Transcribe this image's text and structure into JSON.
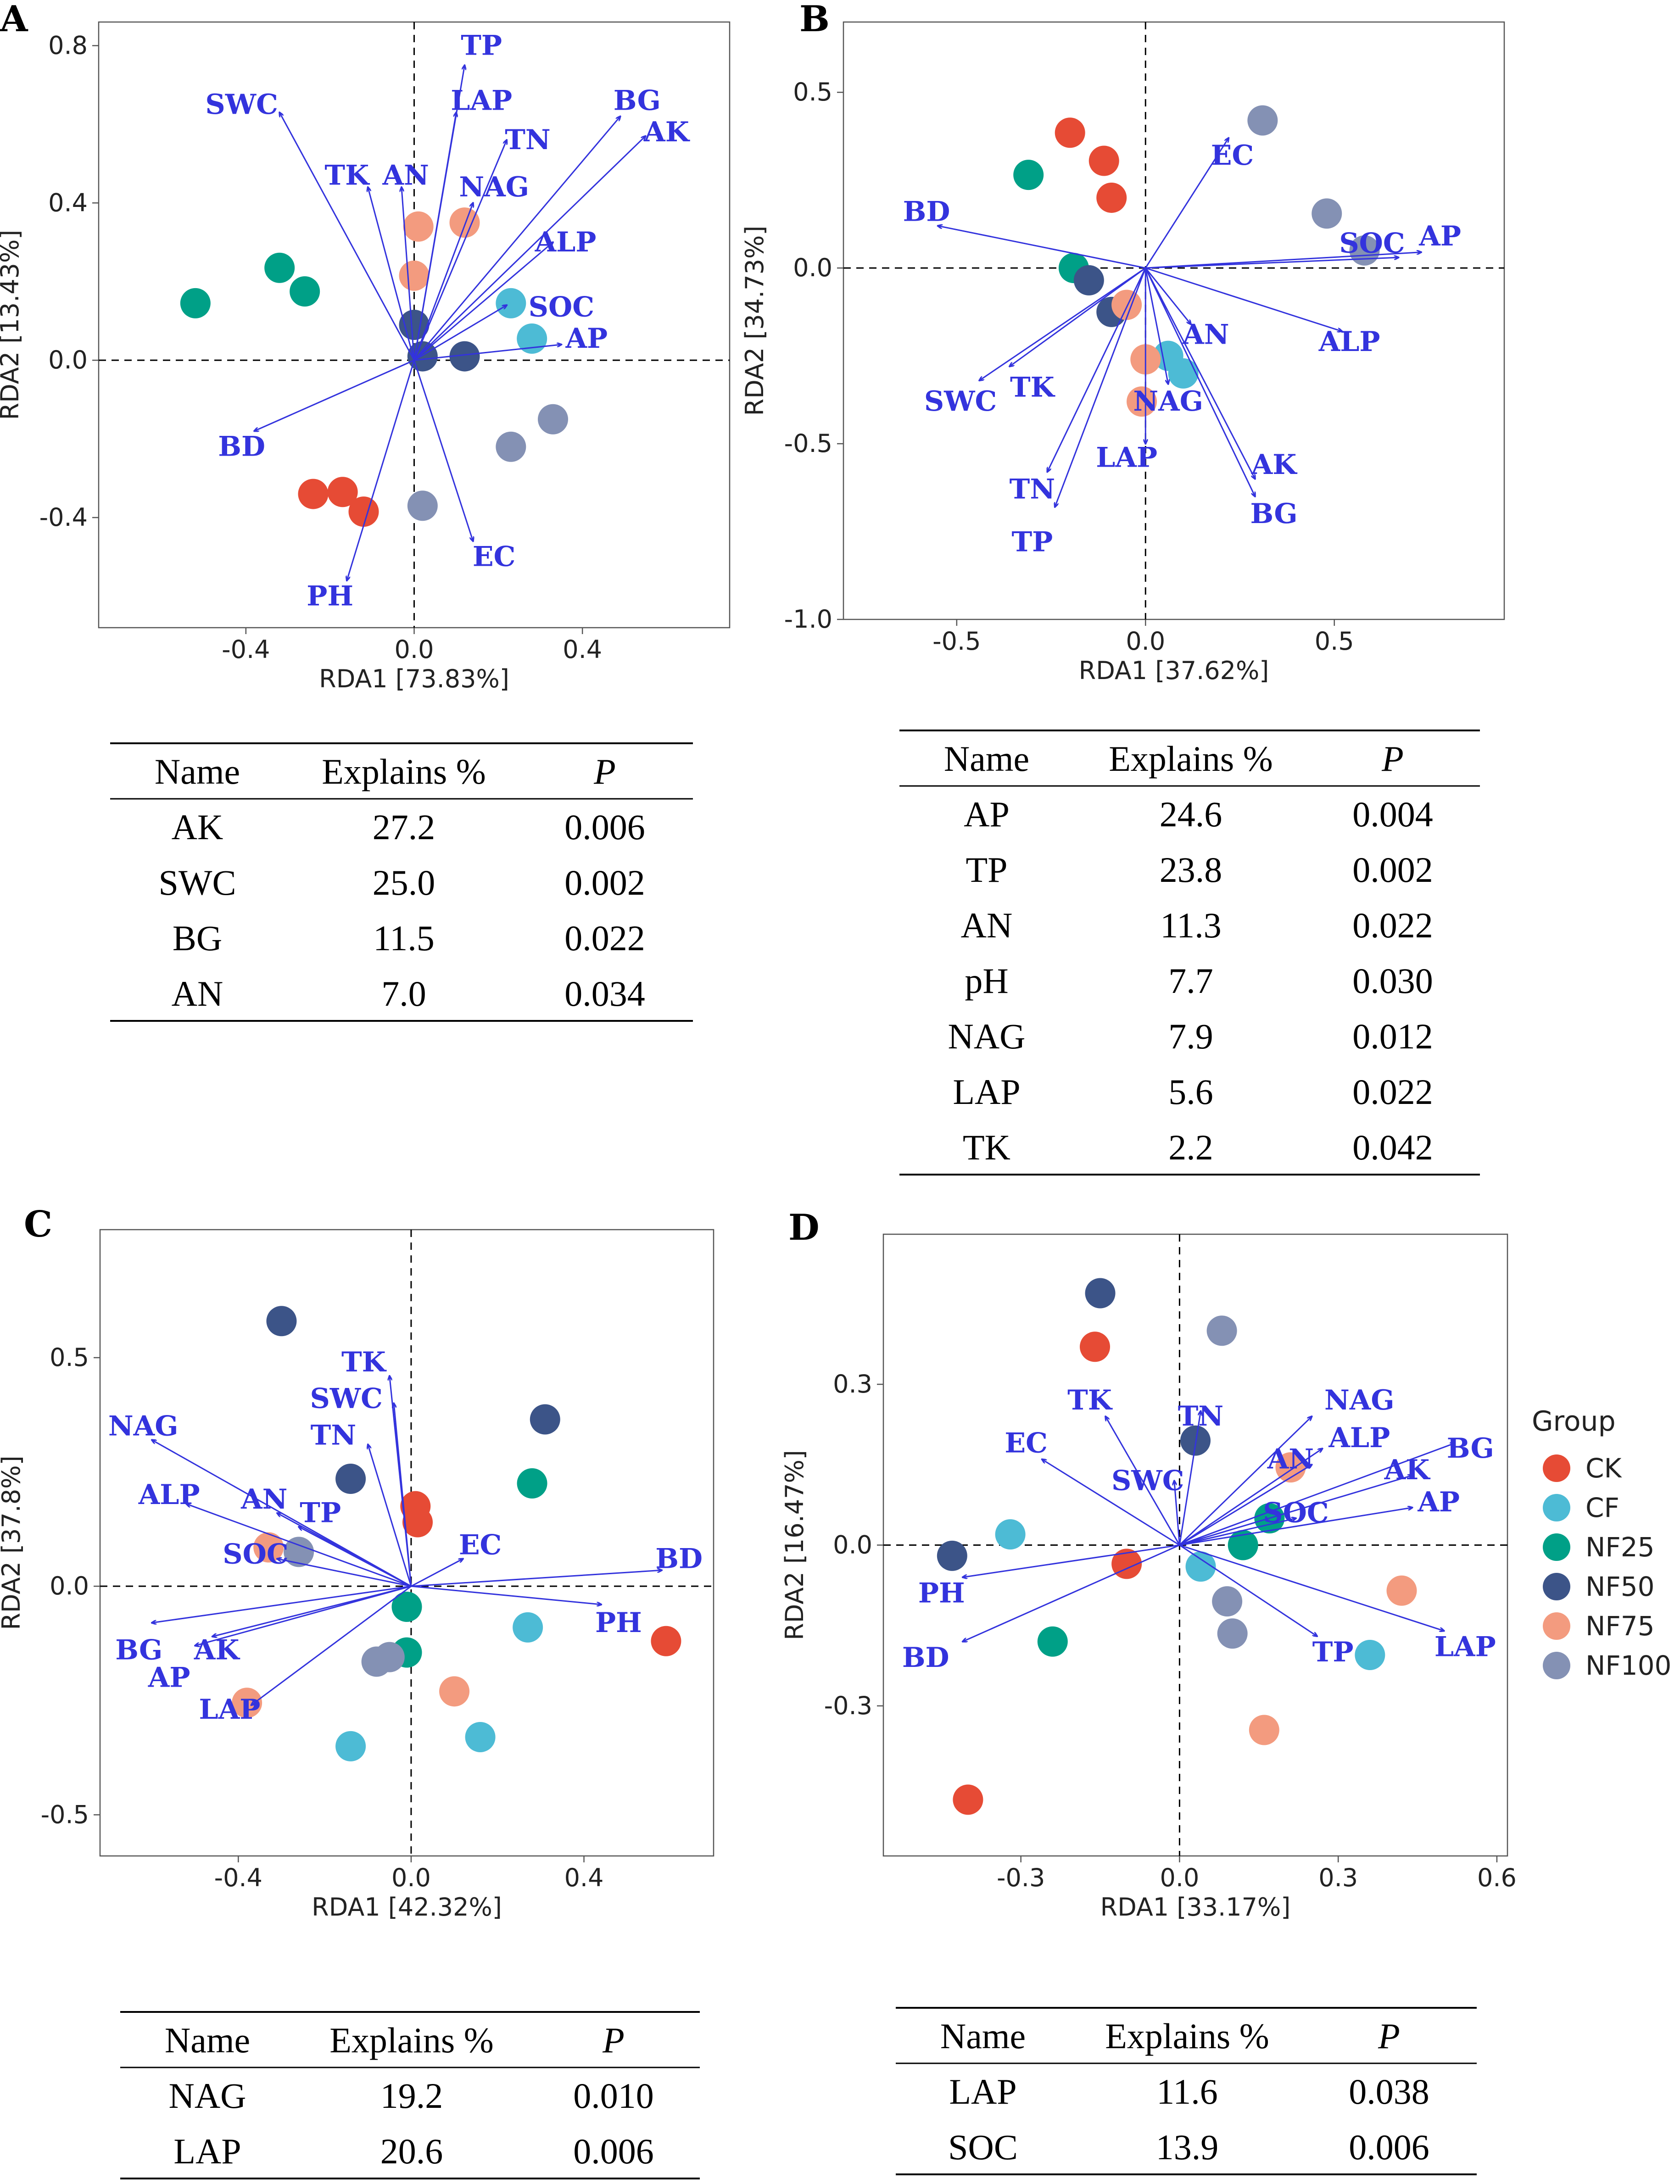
{
  "chart_data": [
    {
      "panel": "A",
      "type": "scatter",
      "xlabel": "RDA1 [73.83%]",
      "ylabel": "RDA2 [13.43%]",
      "xlim": [
        -0.75,
        0.75
      ],
      "ylim": [
        -0.68,
        0.86
      ],
      "xticks": [
        {
          "v": -0.4,
          "label": "-0.4"
        },
        {
          "v": 0.0,
          "label": "0.0"
        },
        {
          "v": 0.4,
          "label": "0.4"
        }
      ],
      "yticks": [
        {
          "v": -0.4,
          "label": "-0.4"
        },
        {
          "v": 0.0,
          "label": "0.0"
        },
        {
          "v": 0.4,
          "label": "0.4"
        },
        {
          "v": 0.8,
          "label": "0.8"
        }
      ],
      "points": [
        {
          "g": "CK",
          "x": -0.24,
          "y": -0.34
        },
        {
          "g": "CK",
          "x": -0.17,
          "y": -0.335
        },
        {
          "g": "CK",
          "x": -0.12,
          "y": -0.385
        },
        {
          "g": "CF",
          "x": 0.23,
          "y": 0.145
        },
        {
          "g": "CF",
          "x": 0.28,
          "y": 0.055
        },
        {
          "g": "NF25",
          "x": -0.52,
          "y": 0.145
        },
        {
          "g": "NF25",
          "x": -0.32,
          "y": 0.235
        },
        {
          "g": "NF25",
          "x": -0.26,
          "y": 0.175
        },
        {
          "g": "NF50",
          "x": 0.0,
          "y": 0.09
        },
        {
          "g": "NF50",
          "x": 0.02,
          "y": 0.01
        },
        {
          "g": "NF50",
          "x": 0.12,
          "y": 0.01
        },
        {
          "g": "NF75",
          "x": 0.01,
          "y": 0.34
        },
        {
          "g": "NF75",
          "x": 0.12,
          "y": 0.35
        },
        {
          "g": "NF75",
          "x": 0.0,
          "y": 0.215
        },
        {
          "g": "NF100",
          "x": 0.33,
          "y": -0.15
        },
        {
          "g": "NF100",
          "x": 0.23,
          "y": -0.22
        },
        {
          "g": "NF100",
          "x": 0.02,
          "y": -0.37
        }
      ],
      "vectors": [
        {
          "label": "TP",
          "x": 0.12,
          "y": 0.75,
          "lx": 0.16,
          "ly": 0.8
        },
        {
          "label": "LAP",
          "x": 0.1,
          "y": 0.63,
          "lx": 0.16,
          "ly": 0.66
        },
        {
          "label": "SWC",
          "x": -0.32,
          "y": 0.63,
          "lx": -0.41,
          "ly": 0.65
        },
        {
          "label": "BG",
          "x": 0.49,
          "y": 0.62,
          "lx": 0.53,
          "ly": 0.66
        },
        {
          "label": "AK",
          "x": 0.55,
          "y": 0.57,
          "lx": 0.6,
          "ly": 0.58
        },
        {
          "label": "TN",
          "x": 0.22,
          "y": 0.56,
          "lx": 0.27,
          "ly": 0.56
        },
        {
          "label": "TK",
          "x": -0.11,
          "y": 0.44,
          "lx": -0.16,
          "ly": 0.47
        },
        {
          "label": "AN",
          "x": -0.03,
          "y": 0.44,
          "lx": -0.02,
          "ly": 0.47
        },
        {
          "label": "NAG",
          "x": 0.14,
          "y": 0.4,
          "lx": 0.19,
          "ly": 0.44
        },
        {
          "label": "ALP",
          "x": 0.33,
          "y": 0.3,
          "lx": 0.36,
          "ly": 0.3
        },
        {
          "label": "SOC",
          "x": 0.22,
          "y": 0.14,
          "lx": 0.35,
          "ly": 0.135
        },
        {
          "label": "AP",
          "x": 0.35,
          "y": 0.04,
          "lx": 0.41,
          "ly": 0.055
        },
        {
          "label": "BD",
          "x": -0.38,
          "y": -0.18,
          "lx": -0.41,
          "ly": -0.22
        },
        {
          "label": "EC",
          "x": 0.14,
          "y": -0.46,
          "lx": 0.19,
          "ly": -0.5
        },
        {
          "label": "PH",
          "x": -0.16,
          "y": -0.56,
          "lx": -0.2,
          "ly": -0.6
        }
      ]
    },
    {
      "panel": "B",
      "type": "scatter",
      "xlabel": "RDA1 [37.62%]",
      "ylabel": "RDA2 [34.73%]",
      "xlim": [
        -0.8,
        0.95
      ],
      "ylim": [
        -1.0,
        0.7
      ],
      "xticks": [
        {
          "v": -0.5,
          "label": "-0.5"
        },
        {
          "v": 0.0,
          "label": "0.0"
        },
        {
          "v": 0.5,
          "label": "0.5"
        }
      ],
      "yticks": [
        {
          "v": -1.0,
          "label": "-1.0"
        },
        {
          "v": -0.5,
          "label": "-0.5"
        },
        {
          "v": 0.0,
          "label": "0.0"
        },
        {
          "v": 0.5,
          "label": "0.5"
        }
      ],
      "points": [
        {
          "g": "CK",
          "x": -0.2,
          "y": 0.385
        },
        {
          "g": "CK",
          "x": -0.11,
          "y": 0.305
        },
        {
          "g": "CK",
          "x": -0.09,
          "y": 0.2
        },
        {
          "g": "CF",
          "x": 0.06,
          "y": -0.25
        },
        {
          "g": "CF",
          "x": 0.1,
          "y": -0.3
        },
        {
          "g": "NF25",
          "x": -0.31,
          "y": 0.265
        },
        {
          "g": "NF25",
          "x": -0.19,
          "y": 0.0
        },
        {
          "g": "NF50",
          "x": -0.15,
          "y": -0.035
        },
        {
          "g": "NF50",
          "x": -0.09,
          "y": -0.125
        },
        {
          "g": "NF75",
          "x": -0.05,
          "y": -0.105
        },
        {
          "g": "NF75",
          "x": 0.0,
          "y": -0.26
        },
        {
          "g": "NF75",
          "x": -0.01,
          "y": -0.38
        },
        {
          "g": "NF100",
          "x": 0.31,
          "y": 0.42
        },
        {
          "g": "NF100",
          "x": 0.48,
          "y": 0.155
        },
        {
          "g": "NF100",
          "x": 0.58,
          "y": 0.05
        }
      ],
      "vectors": [
        {
          "label": "AP",
          "x": 0.73,
          "y": 0.045,
          "lx": 0.78,
          "ly": 0.09
        },
        {
          "label": "SOC",
          "x": 0.67,
          "y": 0.03,
          "lx": 0.6,
          "ly": 0.07
        },
        {
          "label": "EC",
          "x": 0.22,
          "y": 0.37,
          "lx": 0.23,
          "ly": 0.32
        },
        {
          "label": "BD",
          "x": -0.55,
          "y": 0.12,
          "lx": -0.58,
          "ly": 0.16
        },
        {
          "label": "ALP",
          "x": 0.52,
          "y": -0.18,
          "lx": 0.54,
          "ly": -0.21
        },
        {
          "label": "AN",
          "x": 0.12,
          "y": -0.16,
          "lx": 0.16,
          "ly": -0.19
        },
        {
          "label": "NAG",
          "x": 0.06,
          "y": -0.33,
          "lx": 0.06,
          "ly": -0.38
        },
        {
          "label": "LAP",
          "x": 0.0,
          "y": -0.5,
          "lx": -0.05,
          "ly": -0.54
        },
        {
          "label": "AK",
          "x": 0.29,
          "y": -0.6,
          "lx": 0.34,
          "ly": -0.56
        },
        {
          "label": "BG",
          "x": 0.29,
          "y": -0.65,
          "lx": 0.34,
          "ly": -0.7
        },
        {
          "label": "SWC",
          "x": -0.44,
          "y": -0.32,
          "lx": -0.49,
          "ly": -0.38
        },
        {
          "label": "TK",
          "x": -0.36,
          "y": -0.28,
          "lx": -0.3,
          "ly": -0.34
        },
        {
          "label": "TN",
          "x": -0.26,
          "y": -0.58,
          "lx": -0.3,
          "ly": -0.63
        },
        {
          "label": "TP",
          "x": -0.24,
          "y": -0.68,
          "lx": -0.3,
          "ly": -0.78
        }
      ]
    },
    {
      "panel": "C",
      "type": "scatter",
      "xlabel": "RDA1 [42.32%]",
      "ylabel": "RDA2 [37.8%]",
      "xlim": [
        -0.72,
        0.7
      ],
      "ylim": [
        -0.59,
        0.78
      ],
      "xticks": [
        {
          "v": -0.4,
          "label": "-0.4"
        },
        {
          "v": 0.0,
          "label": "0.0"
        },
        {
          "v": 0.4,
          "label": "0.4"
        }
      ],
      "yticks": [
        {
          "v": -0.5,
          "label": "-0.5"
        },
        {
          "v": 0.0,
          "label": "0.0"
        },
        {
          "v": 0.5,
          "label": "0.5"
        }
      ],
      "points": [
        {
          "g": "CK",
          "x": 0.01,
          "y": 0.175
        },
        {
          "g": "CK",
          "x": 0.015,
          "y": 0.14
        },
        {
          "g": "CK",
          "x": 0.59,
          "y": -0.12
        },
        {
          "g": "CF",
          "x": 0.27,
          "y": -0.09
        },
        {
          "g": "CF",
          "x": 0.16,
          "y": -0.33
        },
        {
          "g": "CF",
          "x": -0.14,
          "y": -0.35
        },
        {
          "g": "NF25",
          "x": 0.28,
          "y": 0.225
        },
        {
          "g": "NF25",
          "x": -0.01,
          "y": -0.045
        },
        {
          "g": "NF25",
          "x": -0.01,
          "y": -0.145
        },
        {
          "g": "NF50",
          "x": -0.3,
          "y": 0.58
        },
        {
          "g": "NF50",
          "x": 0.31,
          "y": 0.365
        },
        {
          "g": "NF50",
          "x": -0.14,
          "y": 0.235
        },
        {
          "g": "NF75",
          "x": -0.33,
          "y": 0.085
        },
        {
          "g": "NF75",
          "x": 0.1,
          "y": -0.23
        },
        {
          "g": "NF75",
          "x": -0.38,
          "y": -0.255
        },
        {
          "g": "NF100",
          "x": -0.26,
          "y": 0.075
        },
        {
          "g": "NF100",
          "x": -0.05,
          "y": -0.155
        },
        {
          "g": "NF100",
          "x": -0.08,
          "y": -0.165
        }
      ],
      "vectors": [
        {
          "label": "TK",
          "x": -0.05,
          "y": 0.46,
          "lx": -0.11,
          "ly": 0.49
        },
        {
          "label": "SWC",
          "x": -0.04,
          "y": 0.4,
          "lx": -0.15,
          "ly": 0.41
        },
        {
          "label": "TN",
          "x": -0.1,
          "y": 0.31,
          "lx": -0.18,
          "ly": 0.33
        },
        {
          "label": "NAG",
          "x": -0.6,
          "y": 0.32,
          "lx": -0.62,
          "ly": 0.35
        },
        {
          "label": "ALP",
          "x": -0.52,
          "y": 0.18,
          "lx": -0.56,
          "ly": 0.2
        },
        {
          "label": "AN",
          "x": -0.31,
          "y": 0.16,
          "lx": -0.34,
          "ly": 0.19
        },
        {
          "label": "TP",
          "x": -0.26,
          "y": 0.13,
          "lx": -0.21,
          "ly": 0.16
        },
        {
          "label": "SOC",
          "x": -0.31,
          "y": 0.06,
          "lx": -0.36,
          "ly": 0.07
        },
        {
          "label": "EC",
          "x": 0.12,
          "y": 0.06,
          "lx": 0.16,
          "ly": 0.09
        },
        {
          "label": "BD",
          "x": 0.58,
          "y": 0.035,
          "lx": 0.62,
          "ly": 0.06
        },
        {
          "label": "PH",
          "x": 0.44,
          "y": -0.04,
          "lx": 0.48,
          "ly": -0.08
        },
        {
          "label": "BG",
          "x": -0.6,
          "y": -0.08,
          "lx": -0.63,
          "ly": -0.14
        },
        {
          "label": "AK",
          "x": -0.46,
          "y": -0.11,
          "lx": -0.45,
          "ly": -0.14
        },
        {
          "label": "AP",
          "x": -0.5,
          "y": -0.13,
          "lx": -0.56,
          "ly": -0.2
        },
        {
          "label": "LAP",
          "x": -0.37,
          "y": -0.26,
          "lx": -0.42,
          "ly": -0.27
        }
      ]
    },
    {
      "panel": "D",
      "type": "scatter",
      "xlabel": "RDA1 [33.17%]",
      "ylabel": "RDA2 [16.47%]",
      "xlim": [
        -0.56,
        0.62
      ],
      "ylim": [
        -0.58,
        0.58
      ],
      "xticks": [
        {
          "v": -0.3,
          "label": "-0.3"
        },
        {
          "v": 0.0,
          "label": "0.0"
        },
        {
          "v": 0.3,
          "label": "0.3"
        },
        {
          "v": 0.6,
          "label": "0.6"
        }
      ],
      "yticks": [
        {
          "v": -0.3,
          "label": "-0.3"
        },
        {
          "v": 0.0,
          "label": "0.0"
        },
        {
          "v": 0.3,
          "label": "0.3"
        }
      ],
      "points": [
        {
          "g": "CK",
          "x": -0.16,
          "y": 0.37
        },
        {
          "g": "CK",
          "x": -0.1,
          "y": -0.035
        },
        {
          "g": "CK",
          "x": -0.4,
          "y": -0.475
        },
        {
          "g": "CF",
          "x": -0.32,
          "y": 0.02
        },
        {
          "g": "CF",
          "x": 0.04,
          "y": -0.04
        },
        {
          "g": "CF",
          "x": 0.36,
          "y": -0.205
        },
        {
          "g": "NF25",
          "x": 0.17,
          "y": 0.05
        },
        {
          "g": "NF25",
          "x": 0.12,
          "y": 0.0
        },
        {
          "g": "NF25",
          "x": -0.24,
          "y": -0.18
        },
        {
          "g": "NF50",
          "x": -0.15,
          "y": 0.47
        },
        {
          "g": "NF50",
          "x": 0.03,
          "y": 0.195
        },
        {
          "g": "NF50",
          "x": -0.43,
          "y": -0.02
        },
        {
          "g": "NF75",
          "x": 0.21,
          "y": 0.145
        },
        {
          "g": "NF75",
          "x": 0.42,
          "y": -0.085
        },
        {
          "g": "NF75",
          "x": 0.16,
          "y": -0.345
        },
        {
          "g": "NF100",
          "x": 0.08,
          "y": 0.4
        },
        {
          "g": "NF100",
          "x": 0.09,
          "y": -0.105
        },
        {
          "g": "NF100",
          "x": 0.1,
          "y": -0.165
        }
      ],
      "vectors": [
        {
          "label": "NAG",
          "x": 0.25,
          "y": 0.24,
          "lx": 0.34,
          "ly": 0.27
        },
        {
          "label": "ALP",
          "x": 0.27,
          "y": 0.18,
          "lx": 0.34,
          "ly": 0.2
        },
        {
          "label": "BG",
          "x": 0.52,
          "y": 0.19,
          "lx": 0.55,
          "ly": 0.18
        },
        {
          "label": "AK",
          "x": 0.44,
          "y": 0.13,
          "lx": 0.43,
          "ly": 0.14
        },
        {
          "label": "AP",
          "x": 0.44,
          "y": 0.07,
          "lx": 0.49,
          "ly": 0.08
        },
        {
          "label": "AN",
          "x": 0.25,
          "y": 0.15,
          "lx": 0.21,
          "ly": 0.16
        },
        {
          "label": "SOC",
          "x": 0.22,
          "y": 0.05,
          "lx": 0.22,
          "ly": 0.06
        },
        {
          "label": "TN",
          "x": 0.04,
          "y": 0.25,
          "lx": 0.04,
          "ly": 0.24
        },
        {
          "label": "TK",
          "x": -0.14,
          "y": 0.24,
          "lx": -0.17,
          "ly": 0.27
        },
        {
          "label": "SWC",
          "x": -0.01,
          "y": 0.12,
          "lx": -0.06,
          "ly": 0.12
        },
        {
          "label": "EC",
          "x": -0.26,
          "y": 0.16,
          "lx": -0.29,
          "ly": 0.19
        },
        {
          "label": "PH",
          "x": -0.41,
          "y": -0.06,
          "lx": -0.45,
          "ly": -0.09
        },
        {
          "label": "BD",
          "x": -0.41,
          "y": -0.18,
          "lx": -0.48,
          "ly": -0.21
        },
        {
          "label": "TP",
          "x": 0.26,
          "y": -0.17,
          "lx": 0.29,
          "ly": -0.2
        },
        {
          "label": "LAP",
          "x": 0.5,
          "y": -0.16,
          "lx": 0.54,
          "ly": -0.19
        }
      ]
    }
  ],
  "legend": {
    "title": "Group",
    "items": [
      {
        "label": "CK",
        "color": "#e64b35"
      },
      {
        "label": "CF",
        "color": "#4dbbd5"
      },
      {
        "label": "NF25",
        "color": "#00a087"
      },
      {
        "label": "NF50",
        "color": "#3c5488"
      },
      {
        "label": "NF75",
        "color": "#f39b7f"
      },
      {
        "label": "NF100",
        "color": "#8491b4"
      }
    ]
  },
  "tables": [
    {
      "panel": "A",
      "headers": {
        "name": "Name",
        "explains": "Explains %",
        "p": "P"
      },
      "rows": [
        {
          "name": "AK",
          "explains": "27.2",
          "p": "0.006"
        },
        {
          "name": "SWC",
          "explains": "25.0",
          "p": "0.002"
        },
        {
          "name": "BG",
          "explains": "11.5",
          "p": "0.022"
        },
        {
          "name": "AN",
          "explains": "7.0",
          "p": "0.034"
        }
      ]
    },
    {
      "panel": "B",
      "headers": {
        "name": "Name",
        "explains": "Explains %",
        "p": "P"
      },
      "rows": [
        {
          "name": "AP",
          "explains": "24.6",
          "p": "0.004"
        },
        {
          "name": "TP",
          "explains": "23.8",
          "p": "0.002"
        },
        {
          "name": "AN",
          "explains": "11.3",
          "p": "0.022"
        },
        {
          "name": "pH",
          "explains": "7.7",
          "p": "0.030"
        },
        {
          "name": "NAG",
          "explains": "7.9",
          "p": "0.012"
        },
        {
          "name": "LAP",
          "explains": "5.6",
          "p": "0.022"
        },
        {
          "name": "TK",
          "explains": "2.2",
          "p": "0.042"
        }
      ]
    },
    {
      "panel": "C",
      "headers": {
        "name": "Name",
        "explains": "Explains %",
        "p": "P"
      },
      "rows": [
        {
          "name": "NAG",
          "explains": "19.2",
          "p": "0.010"
        },
        {
          "name": "LAP",
          "explains": "20.6",
          "p": "0.006"
        }
      ]
    },
    {
      "panel": "D",
      "headers": {
        "name": "Name",
        "explains": "Explains %",
        "p": "P"
      },
      "rows": [
        {
          "name": "LAP",
          "explains": "11.6",
          "p": "0.038"
        },
        {
          "name": "SOC",
          "explains": "13.9",
          "p": "0.006"
        }
      ]
    }
  ]
}
